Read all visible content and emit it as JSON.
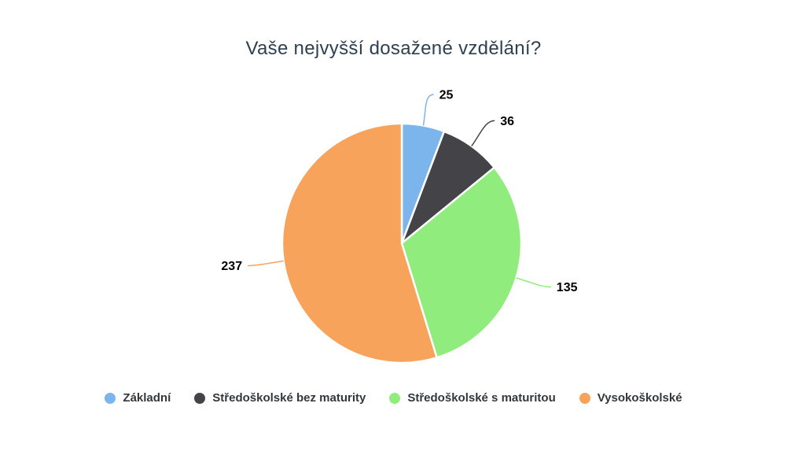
{
  "chart_data": {
    "type": "pie",
    "title": "Vaše nejvyšší dosažené vzdělání?",
    "categories": [
      "Základní",
      "Středoškolské bez maturity",
      "Středoškolské s maturitou",
      "Vysokoškolské"
    ],
    "values": [
      25,
      36,
      135,
      237
    ],
    "data_labels": [
      "25",
      "36",
      "135",
      "237"
    ],
    "colors": [
      "#7cb5ec",
      "#434348",
      "#90ed7d",
      "#f7a35c"
    ],
    "slice_border_color": "#ffffff",
    "start_angle": "top",
    "direction": "clockwise",
    "legend_position": "bottom"
  },
  "styles": {
    "background": "#ffffff",
    "title_color": "#2f4050",
    "data_label_color": "#000000",
    "legend_text_color": "#32373c"
  }
}
